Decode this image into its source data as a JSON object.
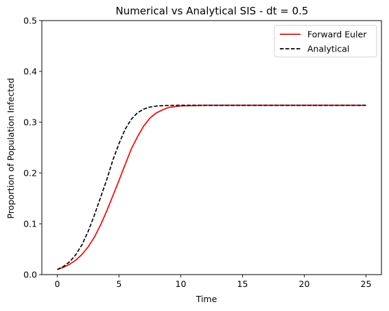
{
  "chart_data": {
    "type": "line",
    "title": "Numerical vs Analytical SIS - dt = 0.5",
    "xlabel": "Time",
    "ylabel": "Proportion of Population Infected",
    "xlim": [
      -1.25,
      26.25
    ],
    "ylim": [
      0,
      0.5
    ],
    "x_ticks": [
      0,
      5,
      10,
      15,
      20,
      25
    ],
    "y_ticks": [
      0.0,
      0.1,
      0.2,
      0.3,
      0.4,
      0.5
    ],
    "x_tick_labels": [
      "0",
      "5",
      "10",
      "15",
      "20",
      "25"
    ],
    "y_tick_labels": [
      "0.0",
      "0.1",
      "0.2",
      "0.3",
      "0.4",
      "0.5"
    ],
    "grid": false,
    "legend_position": "top-right",
    "series": [
      {
        "name": "Forward Euler",
        "color": "#ff0000",
        "style": "solid",
        "x": [
          0,
          0.5,
          1,
          1.5,
          2,
          2.5,
          3,
          3.5,
          4,
          4.5,
          5,
          5.5,
          6,
          6.5,
          7,
          7.5,
          8,
          8.5,
          9,
          10,
          12,
          15,
          20,
          25
        ],
        "y": [
          0.01,
          0.0143,
          0.0203,
          0.0285,
          0.0397,
          0.0546,
          0.0737,
          0.0974,
          0.125,
          0.1552,
          0.1856,
          0.2172,
          0.2476,
          0.2715,
          0.2925,
          0.308,
          0.318,
          0.324,
          0.329,
          0.332,
          0.3333,
          0.3333,
          0.3333,
          0.3333
        ]
      },
      {
        "name": "Analytical",
        "color": "#000000",
        "style": "dashed",
        "x": [
          0,
          0.5,
          1,
          1.5,
          2,
          2.5,
          3,
          3.5,
          4,
          4.5,
          5,
          5.5,
          6,
          6.5,
          7,
          7.5,
          8,
          8.5,
          9,
          10,
          12,
          15,
          20,
          25
        ],
        "y": [
          0.01,
          0.016,
          0.0253,
          0.0392,
          0.0589,
          0.085,
          0.1168,
          0.1518,
          0.1864,
          0.2255,
          0.258,
          0.2863,
          0.306,
          0.3187,
          0.3258,
          0.3298,
          0.3317,
          0.3326,
          0.333,
          0.3333,
          0.3333,
          0.3333,
          0.3333,
          0.3333
        ]
      }
    ]
  }
}
